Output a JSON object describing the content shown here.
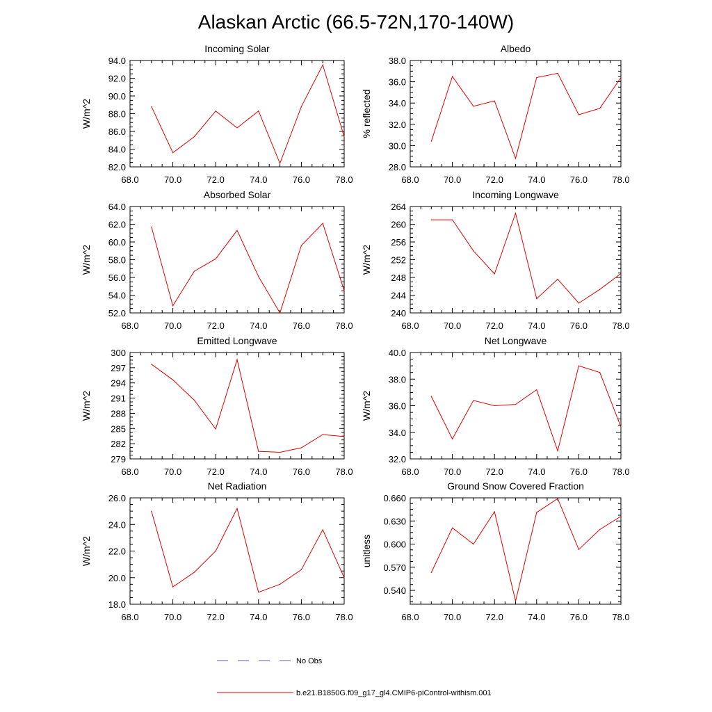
{
  "title": "Alaskan Arctic (66.5-72N,170-140W)",
  "legend": [
    {
      "label": "No Obs",
      "color": "#5a5ad0",
      "dash": true
    },
    {
      "label": "b.e21.B1850G.f09_g17_gl4.CMIP6-piControl-withism.001",
      "color": "#e00000",
      "dash": false
    }
  ],
  "line_color": "#e00000",
  "chart_data": [
    {
      "type": "line",
      "title": "Incoming Solar",
      "ylabel": "W/m^2",
      "x": [
        69,
        70,
        71,
        72,
        73,
        74,
        75,
        76,
        77,
        78
      ],
      "values": [
        88.8,
        83.6,
        85.4,
        88.3,
        86.4,
        88.3,
        82.4,
        88.8,
        93.5,
        85.4
      ],
      "xlim": [
        68,
        78
      ],
      "ylim": [
        82,
        94
      ],
      "xticks": [
        "68.0",
        "70.0",
        "72.0",
        "74.0",
        "76.0",
        "78.0"
      ],
      "yticks": [
        "82.0",
        "84.0",
        "86.0",
        "88.0",
        "90.0",
        "92.0",
        "94.0"
      ]
    },
    {
      "type": "line",
      "title": "Albedo",
      "ylabel": "% reflected",
      "x": [
        69,
        70,
        71,
        72,
        73,
        74,
        75,
        76,
        77,
        78
      ],
      "values": [
        30.4,
        36.5,
        33.7,
        34.2,
        28.8,
        36.4,
        36.8,
        32.9,
        33.5,
        36.4
      ],
      "xlim": [
        68,
        78
      ],
      "ylim": [
        28,
        38
      ],
      "xticks": [
        "68.0",
        "70.0",
        "72.0",
        "74.0",
        "76.0",
        "78.0"
      ],
      "yticks": [
        "28.0",
        "30.0",
        "32.0",
        "34.0",
        "36.0",
        "38.0"
      ]
    },
    {
      "type": "line",
      "title": "Absorbed Solar",
      "ylabel": "W/m^2",
      "x": [
        69,
        70,
        71,
        72,
        73,
        74,
        75,
        76,
        77,
        78
      ],
      "values": [
        61.7,
        52.8,
        56.7,
        58.1,
        61.3,
        56.1,
        52.0,
        59.6,
        62.1,
        54.5
      ],
      "xlim": [
        68,
        78
      ],
      "ylim": [
        52,
        64
      ],
      "xticks": [
        "68.0",
        "70.0",
        "72.0",
        "74.0",
        "76.0",
        "78.0"
      ],
      "yticks": [
        "52.0",
        "54.0",
        "56.0",
        "58.0",
        "60.0",
        "62.0",
        "64.0"
      ]
    },
    {
      "type": "line",
      "title": "Incoming Longwave",
      "ylabel": "W/m^2",
      "x": [
        69,
        70,
        71,
        72,
        73,
        74,
        75,
        76,
        77,
        78
      ],
      "values": [
        261,
        261,
        254,
        248.8,
        262.5,
        243.2,
        247.6,
        242.2,
        245.3,
        248.9
      ],
      "xlim": [
        68,
        78
      ],
      "ylim": [
        240,
        264
      ],
      "xticks": [
        "68.0",
        "70.0",
        "72.0",
        "74.0",
        "76.0",
        "78.0"
      ],
      "yticks": [
        "240",
        "244",
        "248",
        "252",
        "256",
        "260",
        "264"
      ]
    },
    {
      "type": "line",
      "title": "Emitted Longwave",
      "ylabel": "W/m^2",
      "x": [
        69,
        70,
        71,
        72,
        73,
        74,
        75,
        76,
        77,
        78
      ],
      "values": [
        297.7,
        294.6,
        290.6,
        284.9,
        298.6,
        280.5,
        280.3,
        281.2,
        283.8,
        283.4
      ],
      "xlim": [
        68,
        78
      ],
      "ylim": [
        279,
        300
      ],
      "xticks": [
        "68.0",
        "70.0",
        "72.0",
        "74.0",
        "76.0",
        "78.0"
      ],
      "yticks": [
        "279",
        "282",
        "285",
        "288",
        "291",
        "294",
        "297",
        "300"
      ]
    },
    {
      "type": "line",
      "title": "Net Longwave",
      "ylabel": "W/m^2",
      "x": [
        69,
        70,
        71,
        72,
        73,
        74,
        75,
        76,
        77,
        78
      ],
      "values": [
        36.7,
        33.5,
        36.4,
        36.0,
        36.1,
        37.2,
        32.6,
        39.0,
        38.5,
        34.4
      ],
      "xlim": [
        68,
        78
      ],
      "ylim": [
        32,
        40
      ],
      "xticks": [
        "68.0",
        "70.0",
        "72.0",
        "74.0",
        "76.0",
        "78.0"
      ],
      "yticks": [
        "32.0",
        "34.0",
        "36.0",
        "38.0",
        "40.0"
      ]
    },
    {
      "type": "line",
      "title": "Net Radiation",
      "ylabel": "W/m^2",
      "x": [
        69,
        70,
        71,
        72,
        73,
        74,
        75,
        76,
        77,
        78
      ],
      "values": [
        25.0,
        19.3,
        20.4,
        22.0,
        25.2,
        18.9,
        19.5,
        20.6,
        23.6,
        20.0
      ],
      "xlim": [
        68,
        78
      ],
      "ylim": [
        18,
        26
      ],
      "xticks": [
        "68.0",
        "70.0",
        "72.0",
        "74.0",
        "76.0",
        "78.0"
      ],
      "yticks": [
        "18.0",
        "20.0",
        "22.0",
        "24.0",
        "26.0"
      ]
    },
    {
      "type": "line",
      "title": "Ground Snow Covered Fraction",
      "ylabel": "unitless",
      "x": [
        69,
        70,
        71,
        72,
        73,
        74,
        75,
        76,
        77,
        78
      ],
      "values": [
        0.563,
        0.621,
        0.6,
        0.642,
        0.526,
        0.641,
        0.659,
        0.593,
        0.619,
        0.636
      ],
      "xlim": [
        68,
        78
      ],
      "ylim": [
        0.522,
        0.66
      ],
      "xticks": [
        "68.0",
        "70.0",
        "72.0",
        "74.0",
        "76.0",
        "78.0"
      ],
      "yticks": [
        "0.540",
        "0.570",
        "0.600",
        "0.630",
        "0.660"
      ],
      "ytick_values": [
        0.54,
        0.57,
        0.6,
        0.63,
        0.66
      ]
    }
  ]
}
